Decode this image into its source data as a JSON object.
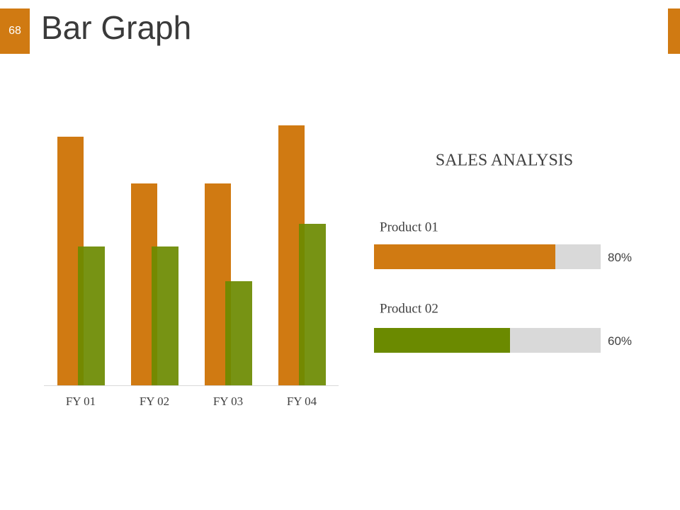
{
  "header": {
    "number": "68",
    "title": "Bar Graph"
  },
  "chart_data": [
    {
      "type": "bar",
      "categories": [
        "FY 01",
        "FY 02",
        "FY 03",
        "FY 04"
      ],
      "series": [
        {
          "color": "#d07a12",
          "values": [
            3.51,
            2.85,
            2.85,
            3.67
          ]
        },
        {
          "color": "#6b8a00",
          "values": [
            1.96,
            1.96,
            1.47,
            2.28
          ]
        }
      ],
      "ylim": [
        0,
        4
      ]
    },
    {
      "type": "progress",
      "title": "SALES ANALYSIS",
      "categories": [
        "Product 01",
        "Product 02"
      ],
      "values": [
        80,
        60
      ],
      "value_labels": [
        "80%",
        "60%"
      ],
      "colors": [
        "#d07a12",
        "#6b8a00"
      ],
      "xlim": [
        0,
        100
      ]
    }
  ]
}
